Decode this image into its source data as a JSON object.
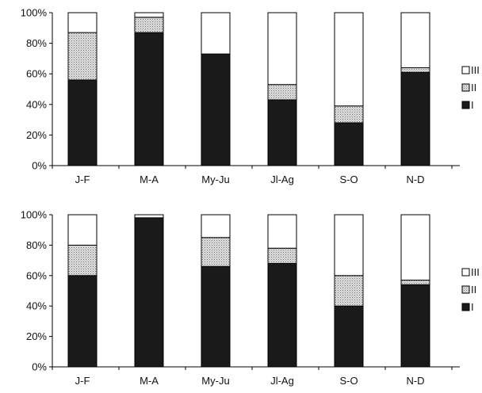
{
  "chart_data": [
    {
      "type": "bar",
      "stacked": true,
      "percent_stacked": true,
      "categories": [
        "J-F",
        "M-A",
        "My-Ju",
        "Jl-Ag",
        "S-O",
        "N-D"
      ],
      "series": [
        {
          "name": "I",
          "values": [
            56,
            87,
            73,
            43,
            28,
            61
          ]
        },
        {
          "name": "II",
          "values": [
            31,
            10,
            0,
            10,
            11,
            3
          ]
        },
        {
          "name": "III",
          "values": [
            13,
            3,
            27,
            47,
            61,
            36
          ]
        }
      ],
      "y_ticks": [
        "0%",
        "20%",
        "40%",
        "60%",
        "80%",
        "100%"
      ],
      "ylim": [
        0,
        100
      ],
      "legend": {
        "position": "right",
        "entries": [
          "III",
          "II",
          "I"
        ]
      },
      "grid": false,
      "colors": {
        "I": "#1a1a1a",
        "II": "#c8c8c8",
        "III": "#ffffff"
      }
    },
    {
      "type": "bar",
      "stacked": true,
      "percent_stacked": true,
      "categories": [
        "J-F",
        "M-A",
        "My-Ju",
        "Jl-Ag",
        "S-O",
        "N-D"
      ],
      "series": [
        {
          "name": "I",
          "values": [
            60,
            98,
            66,
            68,
            40,
            54
          ]
        },
        {
          "name": "II",
          "values": [
            20,
            0,
            19,
            10,
            20,
            3
          ]
        },
        {
          "name": "III",
          "values": [
            20,
            2,
            15,
            22,
            40,
            43
          ]
        }
      ],
      "y_ticks": [
        "0%",
        "20%",
        "40%",
        "60%",
        "80%",
        "100%"
      ],
      "ylim": [
        0,
        100
      ],
      "legend": {
        "position": "right",
        "entries": [
          "III",
          "II",
          "I"
        ]
      },
      "grid": false,
      "colors": {
        "I": "#1a1a1a",
        "II": "#c8c8c8",
        "III": "#ffffff"
      }
    }
  ]
}
